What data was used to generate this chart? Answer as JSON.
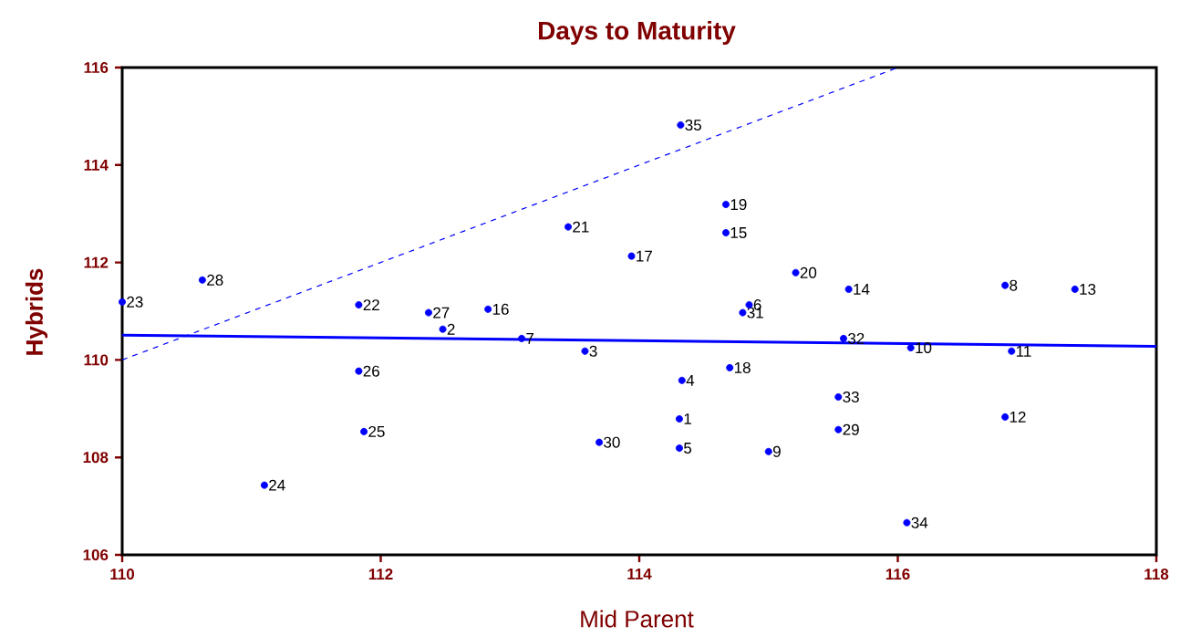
{
  "chart_data": {
    "type": "scatter",
    "title": "Days to Maturity",
    "xlabel": "Mid Parent",
    "ylabel": "Hybrids",
    "xlim": [
      110,
      118
    ],
    "xticks": [
      110,
      112,
      114,
      116,
      118
    ],
    "marker": "circle",
    "ylim": [
      106,
      116
    ],
    "yticks": [
      106,
      108,
      110,
      112,
      114,
      116
    ],
    "series": [
      {
        "color": "#0000ff",
        "x": [
          114.31,
          112.48,
          113.58,
          114.33,
          114.31,
          114.85,
          113.09,
          116.83,
          115.0,
          116.1,
          116.88,
          116.83,
          117.37,
          115.62,
          114.67,
          112.83,
          113.94,
          114.7,
          114.67,
          115.21,
          113.45,
          111.83,
          110.0,
          111.1,
          111.87,
          111.83,
          112.37,
          110.62,
          115.54,
          113.69,
          114.8,
          115.58,
          115.54,
          116.07,
          114.32
        ],
        "values": [
          108.79,
          110.63,
          110.18,
          109.58,
          108.19,
          111.13,
          110.44,
          111.53,
          108.12,
          110.25,
          110.18,
          108.83,
          111.45,
          111.45,
          112.61,
          111.04,
          112.13,
          109.84,
          113.19,
          111.79,
          112.73,
          111.13,
          111.19,
          107.43,
          108.53,
          109.77,
          110.97,
          111.64,
          108.57,
          108.31,
          110.97,
          110.44,
          109.24,
          106.66,
          114.82
        ]
      },
      {
        "type": "line",
        "color": "#0000ff",
        "line_style": "dashed",
        "marker": "none",
        "x": [
          110,
          116
        ],
        "values": [
          110,
          116
        ]
      },
      {
        "type": "line",
        "color": "#0000ff",
        "line_style": "solid",
        "marker": "none",
        "x": [
          110,
          118
        ],
        "values": [
          110.51,
          110.28
        ]
      }
    ],
    "annotations": [
      {
        "text": "1",
        "x": 114.31,
        "y": 108.79
      },
      {
        "text": "2",
        "x": 112.48,
        "y": 110.63
      },
      {
        "text": "3",
        "x": 113.58,
        "y": 110.18
      },
      {
        "text": "4",
        "x": 114.33,
        "y": 109.58
      },
      {
        "text": "5",
        "x": 114.31,
        "y": 108.19
      },
      {
        "text": "6",
        "x": 114.85,
        "y": 111.13
      },
      {
        "text": "7",
        "x": 113.09,
        "y": 110.44
      },
      {
        "text": "8",
        "x": 116.83,
        "y": 111.53
      },
      {
        "text": "9",
        "x": 115.0,
        "y": 108.12
      },
      {
        "text": "10",
        "x": 116.1,
        "y": 110.25
      },
      {
        "text": "11",
        "x": 116.88,
        "y": 110.18
      },
      {
        "text": "12",
        "x": 116.83,
        "y": 108.83
      },
      {
        "text": "13",
        "x": 117.37,
        "y": 111.45
      },
      {
        "text": "14",
        "x": 115.62,
        "y": 111.45
      },
      {
        "text": "15",
        "x": 114.67,
        "y": 112.61
      },
      {
        "text": "16",
        "x": 112.83,
        "y": 111.04
      },
      {
        "text": "17",
        "x": 113.94,
        "y": 112.13
      },
      {
        "text": "18",
        "x": 114.7,
        "y": 109.84
      },
      {
        "text": "19",
        "x": 114.67,
        "y": 113.19
      },
      {
        "text": "20",
        "x": 115.21,
        "y": 111.79
      },
      {
        "text": "21",
        "x": 113.45,
        "y": 112.73
      },
      {
        "text": "22",
        "x": 111.83,
        "y": 111.13
      },
      {
        "text": "23",
        "x": 110.0,
        "y": 111.19
      },
      {
        "text": "24",
        "x": 111.1,
        "y": 107.43
      },
      {
        "text": "25",
        "x": 111.87,
        "y": 108.53
      },
      {
        "text": "26",
        "x": 111.83,
        "y": 109.77
      },
      {
        "text": "27",
        "x": 112.37,
        "y": 110.97
      },
      {
        "text": "28",
        "x": 110.62,
        "y": 111.64
      },
      {
        "text": "29",
        "x": 115.54,
        "y": 108.57
      },
      {
        "text": "30",
        "x": 113.69,
        "y": 108.31
      },
      {
        "text": "31",
        "x": 114.8,
        "y": 110.97
      },
      {
        "text": "32",
        "x": 115.58,
        "y": 110.44
      },
      {
        "text": "33",
        "x": 115.54,
        "y": 109.24
      },
      {
        "text": "34",
        "x": 116.07,
        "y": 106.66
      },
      {
        "text": "35",
        "x": 114.32,
        "y": 114.82
      }
    ]
  }
}
